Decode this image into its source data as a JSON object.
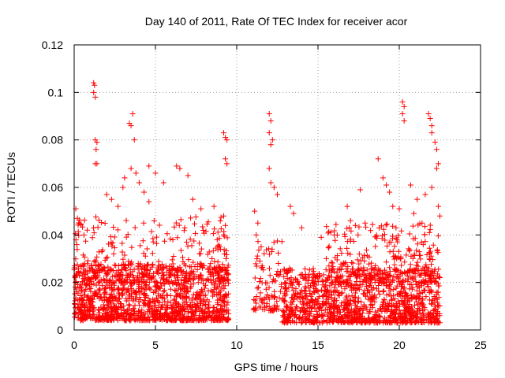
{
  "chart_data": {
    "type": "scatter",
    "title": "Day 140 of 2011, Rate Of TEC Index for receiver acor",
    "xlabel": "GPS time / hours",
    "ylabel": "ROTI / TECUs",
    "xlim": [
      0,
      25
    ],
    "ylim": [
      0,
      0.12
    ],
    "xticks": [
      0,
      5,
      10,
      15,
      20,
      25
    ],
    "yticks": [
      0,
      0.02,
      0.04,
      0.06,
      0.08,
      0.1,
      0.12
    ],
    "xtick_labels": [
      "0",
      "5",
      "10",
      "15",
      "20",
      "25"
    ],
    "ytick_labels": [
      "0",
      "0.02",
      "0.04",
      "0.06",
      "0.08",
      "0.1",
      "0.12"
    ],
    "grid": true,
    "marker": "+",
    "color": "#ff0000",
    "series": [
      {
        "points": [
          [
            1.2,
            0.104
          ],
          [
            1.25,
            0.103
          ],
          [
            1.2,
            0.1
          ],
          [
            1.3,
            0.098
          ],
          [
            1.3,
            0.08
          ],
          [
            1.4,
            0.079
          ],
          [
            1.35,
            0.076
          ],
          [
            1.3,
            0.07
          ],
          [
            1.4,
            0.07
          ],
          [
            3.4,
            0.087
          ],
          [
            3.6,
            0.091
          ],
          [
            3.5,
            0.086
          ],
          [
            3.7,
            0.08
          ],
          [
            3.0,
            0.06
          ],
          [
            3.1,
            0.064
          ],
          [
            3.5,
            0.068
          ],
          [
            3.8,
            0.066
          ],
          [
            4.0,
            0.062
          ],
          [
            4.6,
            0.069
          ],
          [
            5.0,
            0.066
          ],
          [
            5.5,
            0.062
          ],
          [
            6.3,
            0.069
          ],
          [
            6.5,
            0.068
          ],
          [
            7.0,
            0.065
          ],
          [
            7.3,
            0.055
          ],
          [
            7.8,
            0.051
          ],
          [
            8.6,
            0.052
          ],
          [
            9.2,
            0.083
          ],
          [
            9.3,
            0.081
          ],
          [
            9.4,
            0.08
          ],
          [
            9.3,
            0.072
          ],
          [
            9.4,
            0.07
          ],
          [
            9.2,
            0.048
          ],
          [
            9.3,
            0.044
          ],
          [
            8.8,
            0.038
          ],
          [
            9.0,
            0.034
          ],
          [
            0.1,
            0.051
          ],
          [
            0.2,
            0.047
          ],
          [
            0.3,
            0.045
          ],
          [
            0.6,
            0.04
          ],
          [
            0.8,
            0.042
          ],
          [
            2.0,
            0.057
          ],
          [
            2.3,
            0.055
          ],
          [
            2.7,
            0.052
          ],
          [
            4.3,
            0.058
          ],
          [
            4.6,
            0.054
          ],
          [
            11.1,
            0.05
          ],
          [
            11.3,
            0.045
          ],
          [
            11.2,
            0.04
          ],
          [
            11.5,
            0.035
          ],
          [
            12.0,
            0.091
          ],
          [
            12.1,
            0.088
          ],
          [
            12.0,
            0.083
          ],
          [
            12.2,
            0.08
          ],
          [
            12.1,
            0.078
          ],
          [
            12.0,
            0.068
          ],
          [
            12.1,
            0.062
          ],
          [
            12.3,
            0.06
          ],
          [
            12.5,
            0.057
          ],
          [
            13.3,
            0.052
          ],
          [
            13.5,
            0.049
          ],
          [
            14.0,
            0.043
          ],
          [
            15.2,
            0.039
          ],
          [
            16.0,
            0.04
          ],
          [
            16.8,
            0.052
          ],
          [
            17.0,
            0.046
          ],
          [
            17.3,
            0.044
          ],
          [
            17.6,
            0.059
          ],
          [
            17.9,
            0.045
          ],
          [
            18.7,
            0.072
          ],
          [
            19.0,
            0.064
          ],
          [
            19.2,
            0.061
          ],
          [
            19.4,
            0.058
          ],
          [
            19.6,
            0.052
          ],
          [
            19.8,
            0.043
          ],
          [
            20.0,
            0.051
          ],
          [
            20.2,
            0.096
          ],
          [
            20.3,
            0.094
          ],
          [
            20.2,
            0.091
          ],
          [
            20.3,
            0.088
          ],
          [
            21.8,
            0.091
          ],
          [
            21.9,
            0.089
          ],
          [
            22.0,
            0.086
          ],
          [
            22.0,
            0.083
          ],
          [
            22.2,
            0.079
          ],
          [
            22.3,
            0.076
          ],
          [
            22.4,
            0.07
          ],
          [
            22.3,
            0.068
          ],
          [
            22.0,
            0.06
          ],
          [
            21.6,
            0.057
          ],
          [
            22.4,
            0.052
          ],
          [
            22.5,
            0.048
          ],
          [
            20.7,
            0.061
          ],
          [
            21.1,
            0.055
          ],
          [
            20.9,
            0.049
          ],
          [
            21.4,
            0.045
          ]
        ],
        "clusters": [
          {
            "x": [
              0.0,
              9.5
            ],
            "y": [
              0.004,
              0.028
            ],
            "n": 1300
          },
          {
            "x": [
              0.0,
              9.5
            ],
            "y": [
              0.02,
              0.048
            ],
            "n": 260
          },
          {
            "x": [
              11.0,
              12.8
            ],
            "y": [
              0.008,
              0.038
            ],
            "n": 100
          },
          {
            "x": [
              12.8,
              22.5
            ],
            "y": [
              0.003,
              0.026
            ],
            "n": 1200
          },
          {
            "x": [
              15.5,
              22.5
            ],
            "y": [
              0.02,
              0.045
            ],
            "n": 260
          }
        ]
      }
    ]
  }
}
